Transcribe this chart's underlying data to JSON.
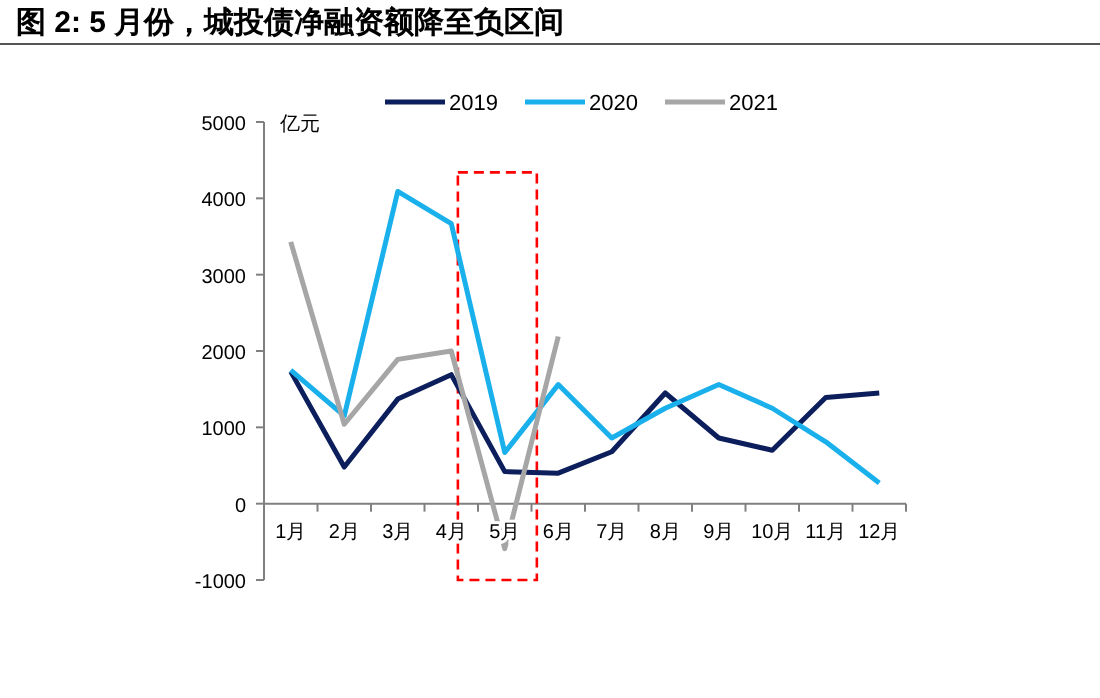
{
  "chart_data": {
    "type": "line",
    "title": "图 2: 5 月份，城投债净融资额降至负区间",
    "ylabel": "亿元",
    "categories": [
      "1月",
      "2月",
      "3月",
      "4月",
      "5月",
      "6月",
      "7月",
      "8月",
      "9月",
      "10月",
      "11月",
      "12月"
    ],
    "series": [
      {
        "name": "2019",
        "color": "#0c1f5c",
        "values": [
          1730,
          480,
          1370,
          1690,
          420,
          400,
          680,
          1450,
          860,
          700,
          1390,
          1450
        ]
      },
      {
        "name": "2020",
        "color": "#1ab0ec",
        "values": [
          1750,
          1150,
          4090,
          3670,
          670,
          1560,
          860,
          1250,
          1560,
          1250,
          810,
          270
        ]
      },
      {
        "name": "2021",
        "color": "#a6a6a6",
        "values": [
          3430,
          1040,
          1890,
          2000,
          -590,
          2190,
          null,
          null,
          null,
          null,
          null,
          null
        ]
      }
    ],
    "ylim": [
      -1000,
      5000
    ],
    "yticks": [
      -1000,
      0,
      1000,
      2000,
      3000,
      4000,
      5000
    ],
    "legend": "top",
    "grid": false,
    "marker": "none",
    "line_style": "solid"
  }
}
